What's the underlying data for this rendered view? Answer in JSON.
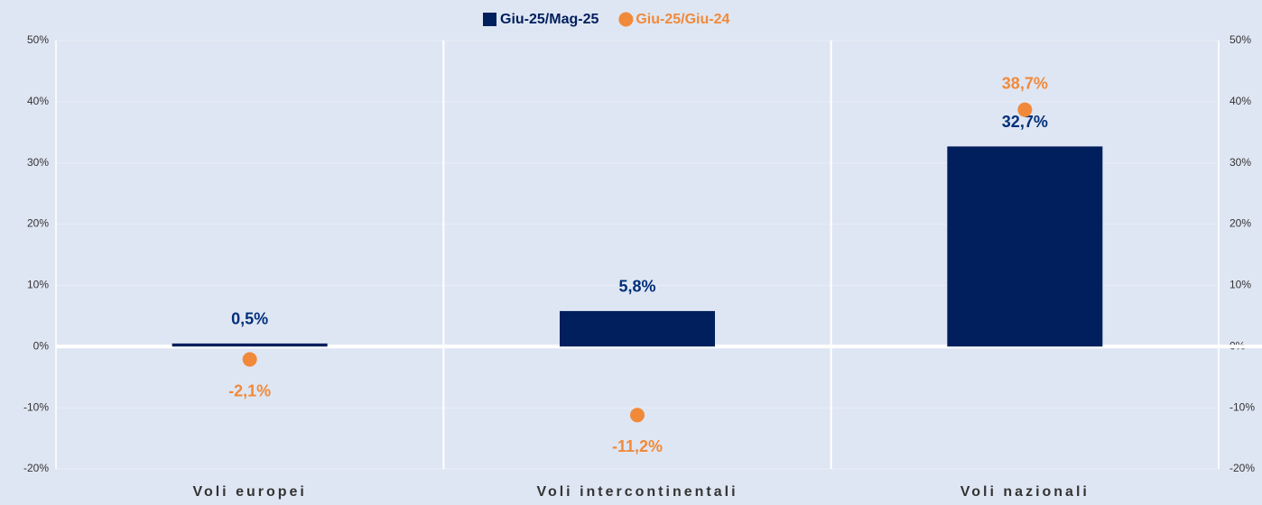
{
  "chart_data": {
    "type": "bar",
    "categories": [
      "Voli europei",
      "Voli intercontinentali",
      "Voli nazionali"
    ],
    "series": [
      {
        "name": "Giu-25/Mag-25",
        "type": "bar",
        "color": "#001f5c",
        "label_color": "#00307a",
        "values": [
          0.5,
          5.8,
          32.7
        ],
        "value_labels": [
          "0,5%",
          "5,8%",
          "32,7%"
        ]
      },
      {
        "name": "Giu-25/Giu-24",
        "type": "scatter",
        "color": "#f08a3a",
        "label_color": "#f08a3a",
        "values": [
          -2.1,
          -11.2,
          38.7
        ],
        "value_labels": [
          "-2,1%",
          "-11,2%",
          "38,7%"
        ]
      }
    ],
    "ylim": [
      -20,
      50
    ],
    "yticks": [
      {
        "value": -20,
        "label": "-20%"
      },
      {
        "value": -10,
        "label": "-10%"
      },
      {
        "value": 0,
        "label": "0%"
      },
      {
        "value": 10,
        "label": "10%"
      },
      {
        "value": 20,
        "label": "20%"
      },
      {
        "value": 30,
        "label": "30%"
      },
      {
        "value": 40,
        "label": "40%"
      },
      {
        "value": 50,
        "label": "50%"
      }
    ],
    "y2lim": [
      -20,
      50
    ],
    "y2ticks": [
      {
        "value": -20,
        "label": "-20%"
      },
      {
        "value": -10,
        "label": "-10%"
      },
      {
        "value": 0,
        "label": "0%"
      },
      {
        "value": 10,
        "label": "10%"
      },
      {
        "value": 20,
        "label": "20%"
      },
      {
        "value": 30,
        "label": "30%"
      },
      {
        "value": 40,
        "label": "40%"
      },
      {
        "value": 50,
        "label": "50%"
      }
    ],
    "grid": true,
    "legend": "top"
  }
}
